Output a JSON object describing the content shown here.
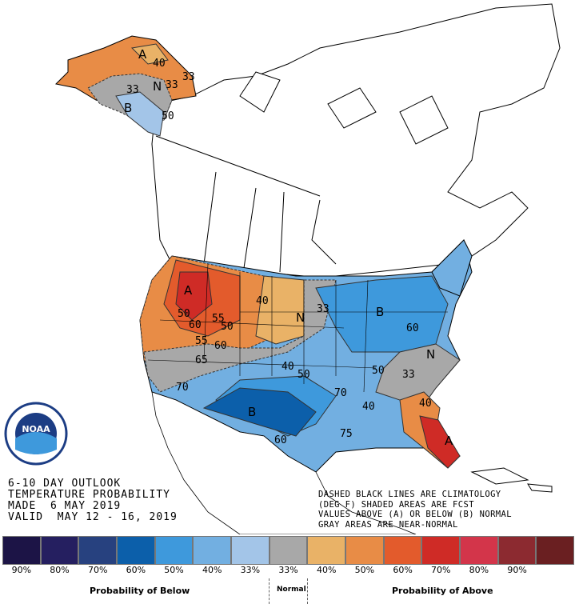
{
  "title": {
    "line1": "6-10 DAY OUTLOOK",
    "line2": "TEMPERATURE PROBABILITY",
    "line3": "MADE  6 MAY 2019",
    "line4": "VALID  MAY 12 - 16, 2019"
  },
  "notes": {
    "line1": "DASHED BLACK LINES ARE CLIMATOLOGY",
    "line2": "(DEG F) SHADED AREAS ARE FCST",
    "line3": "VALUES ABOVE (A) OR BELOW (B) NORMAL",
    "line4": "GRAY AREAS ARE NEAR-NORMAL"
  },
  "legend": {
    "swatches": [
      {
        "label": "90%",
        "color": "#1c1446"
      },
      {
        "label": "80%",
        "color": "#251f60"
      },
      {
        "label": "70%",
        "color": "#27417f"
      },
      {
        "label": "60%",
        "color": "#0c5faa"
      },
      {
        "label": "50%",
        "color": "#3e99dc"
      },
      {
        "label": "40%",
        "color": "#72afe1"
      },
      {
        "label": "33%",
        "color": "#a3c5e8"
      },
      {
        "label": "33%",
        "color": "#a8a8a8"
      },
      {
        "label": "40%",
        "color": "#e9b267"
      },
      {
        "label": "50%",
        "color": "#e88c46"
      },
      {
        "label": "60%",
        "color": "#e35b2c"
      },
      {
        "label": "70%",
        "color": "#cf2b26"
      },
      {
        "label": "80%",
        "color": "#d3354a"
      },
      {
        "label": "90%",
        "color": "#8c2a30"
      },
      {
        "label": "",
        "color": "#6a1f21"
      }
    ],
    "below_label": "Probability of Below",
    "normal_label": "Normal",
    "above_label": "Probability of Above"
  },
  "map_labels": {
    "alaska_a": "A",
    "alaska_n": "N",
    "alaska_b": "B",
    "ak_33": "33",
    "ak_40": "40",
    "ak_50": "50",
    "ak_33b": "33",
    "ak_33c": "33",
    "west_a": "A",
    "w_50": "50",
    "w_40": "40",
    "w_60": "60",
    "w_55": "55",
    "w_50b": "50",
    "w_55b": "55",
    "w_60b": "60",
    "w_65": "65",
    "w_70": "70",
    "plains_n": "N",
    "p_33": "33",
    "midwest_b": "B",
    "mw_60": "60",
    "east_n": "N",
    "e_33": "33",
    "e_50": "50",
    "e_70": "70",
    "e_75": "75",
    "south_b": "B",
    "s_40": "40",
    "s_50": "50",
    "s_60": "60",
    "s_40b": "40",
    "se_40": "40",
    "se_a": "A",
    "logo_text": "NOAA"
  }
}
